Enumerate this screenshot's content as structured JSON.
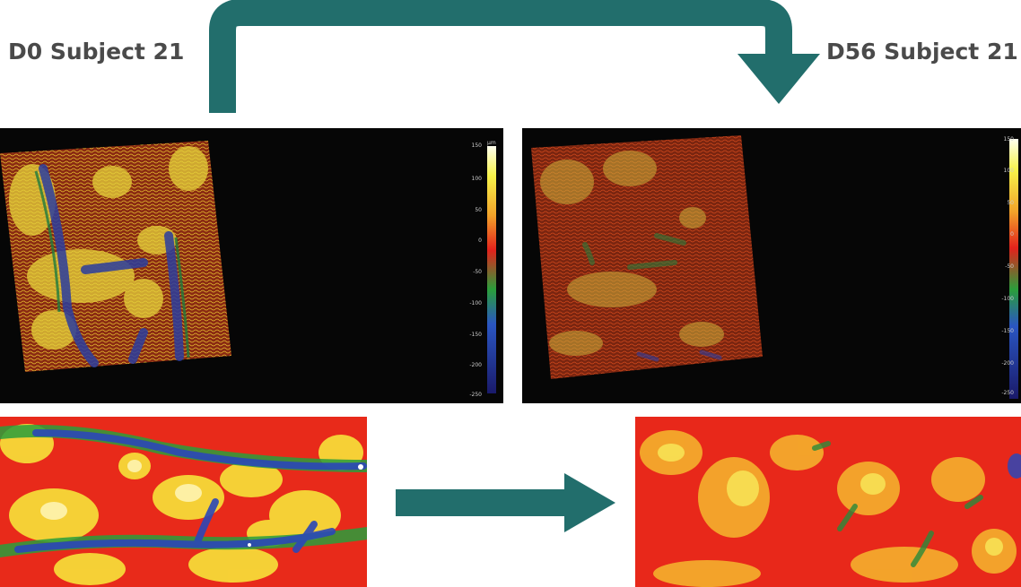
{
  "labels": {
    "before": "D0 Subject 21",
    "after": "D56 Subject 21"
  },
  "colorbar": {
    "unit": "µm",
    "ticks": [
      "150",
      "100",
      "50",
      "0",
      "-50",
      "-100",
      "-150",
      "-200",
      "-250"
    ]
  },
  "colors": {
    "arrow": "#226e6c",
    "panel_background": "#060606",
    "title_text": "#4a4a4a"
  }
}
